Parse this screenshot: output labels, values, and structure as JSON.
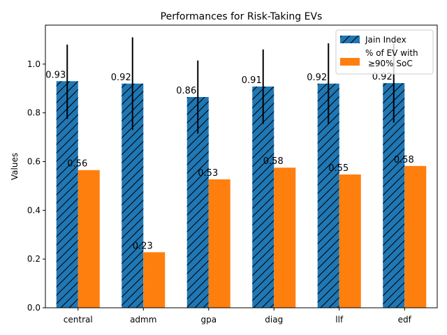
{
  "chart_data": {
    "type": "bar",
    "title": "Performances for Risk-Taking EVs",
    "xlabel": "",
    "ylabel": "Values",
    "categories": [
      "central",
      "admm",
      "gpa",
      "diag",
      "llf",
      "edf"
    ],
    "ylim": [
      0,
      1.16
    ],
    "yticks": [
      0.0,
      0.2,
      0.4,
      0.6,
      0.8,
      1.0
    ],
    "ytick_labels": [
      "0.0",
      "0.2",
      "0.4",
      "0.6",
      "0.8",
      "1.0"
    ],
    "grid": false,
    "legend_position": "top-right",
    "series": [
      {
        "name": "Jain Index",
        "color": "#1f77b4",
        "hatch": "diagonal",
        "values": [
          0.93,
          0.92,
          0.865,
          0.908,
          0.92,
          0.922
        ],
        "value_labels": [
          "0.93",
          "0.92",
          "0.86",
          "0.91",
          "0.92",
          "0.92"
        ],
        "error_low": [
          0.775,
          0.73,
          0.715,
          0.755,
          0.755,
          0.76
        ],
        "error_high": [
          1.08,
          1.11,
          1.015,
          1.06,
          1.085,
          1.085
        ]
      },
      {
        "name": "% of EV with\n ≥90% SoC",
        "color": "#ff7f0e",
        "hatch": "none",
        "values": [
          0.565,
          0.228,
          0.527,
          0.575,
          0.547,
          0.582
        ],
        "value_labels": [
          "0.56",
          "0.23",
          "0.53",
          "0.58",
          "0.55",
          "0.58"
        ]
      }
    ]
  }
}
